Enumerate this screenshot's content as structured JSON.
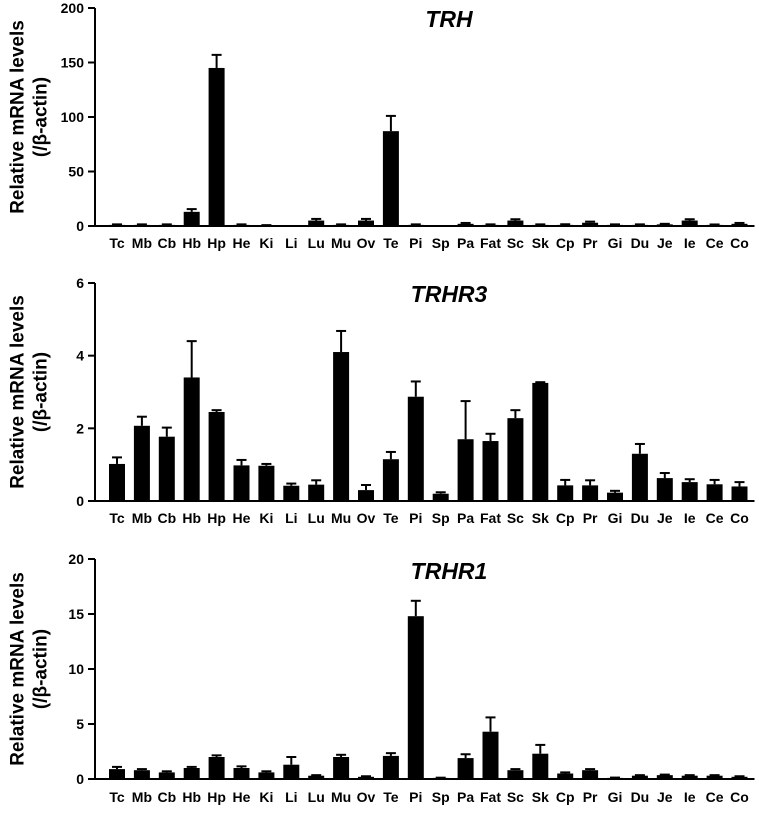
{
  "chart_data": [
    {
      "type": "bar",
      "title": "TRH",
      "ylabel": [
        "Relative mRNA levels",
        "(/β-actin)"
      ],
      "xlabel": "",
      "ylim": [
        0,
        200
      ],
      "yticks": [
        0,
        50,
        100,
        150,
        200
      ],
      "categories": [
        "Tc",
        "Mb",
        "Cb",
        "Hb",
        "Hp",
        "He",
        "Ki",
        "Li",
        "Lu",
        "Mu",
        "Ov",
        "Te",
        "Pi",
        "Sp",
        "Pa",
        "Fat",
        "Sc",
        "Sk",
        "Cp",
        "Pr",
        "Gi",
        "Du",
        "Je",
        "Ie",
        "Ce",
        "Co"
      ],
      "values": [
        1,
        1,
        1,
        13,
        145,
        1,
        0.5,
        0,
        5,
        1,
        5,
        87,
        1,
        0,
        2,
        1,
        5,
        1,
        1,
        3,
        1,
        1,
        1.5,
        5,
        1,
        2
      ],
      "errors": [
        0.5,
        0.5,
        0.5,
        2.5,
        12,
        0.5,
        0.3,
        0,
        1.5,
        0.5,
        1.5,
        14,
        0.5,
        0,
        0.8,
        0.5,
        1.2,
        0.5,
        0.6,
        1,
        0.5,
        0.5,
        0.5,
        1.2,
        0.4,
        0.8
      ],
      "color": "#000000"
    },
    {
      "type": "bar",
      "title": "TRHR3",
      "ylabel": [
        "Relative mRNA levels",
        "(/β-actin)"
      ],
      "xlabel": "",
      "ylim": [
        0,
        6
      ],
      "yticks": [
        0,
        2,
        4,
        6
      ],
      "categories": [
        "Tc",
        "Mb",
        "Cb",
        "Hb",
        "Hp",
        "He",
        "Ki",
        "Li",
        "Lu",
        "Mu",
        "Ov",
        "Te",
        "Pi",
        "Sp",
        "Pa",
        "Fat",
        "Sc",
        "Sk",
        "Cp",
        "Pr",
        "Gi",
        "Du",
        "Je",
        "Ie",
        "Ce",
        "Co"
      ],
      "values": [
        1.02,
        2.07,
        1.77,
        3.4,
        2.45,
        0.98,
        0.97,
        0.42,
        0.45,
        4.1,
        0.3,
        1.15,
        2.87,
        0.2,
        1.7,
        1.65,
        2.28,
        3.25,
        0.43,
        0.43,
        0.23,
        1.3,
        0.63,
        0.52,
        0.46,
        0.4
      ],
      "errors": [
        0.18,
        0.25,
        0.25,
        1.0,
        0.05,
        0.15,
        0.05,
        0.06,
        0.12,
        0.58,
        0.14,
        0.2,
        0.42,
        0.04,
        1.05,
        0.2,
        0.22,
        0.02,
        0.15,
        0.14,
        0.05,
        0.27,
        0.14,
        0.08,
        0.12,
        0.12
      ],
      "color": "#000000"
    },
    {
      "type": "bar",
      "title": "TRHR1",
      "ylabel": [
        "Relative mRNA levels",
        "(/β-actin)"
      ],
      "xlabel": "",
      "ylim": [
        0,
        20
      ],
      "yticks": [
        0,
        5,
        10,
        15,
        20
      ],
      "categories": [
        "Tc",
        "Mb",
        "Cb",
        "Hb",
        "Hp",
        "He",
        "Ki",
        "Li",
        "Lu",
        "Mu",
        "Ov",
        "Te",
        "Pi",
        "Sp",
        "Pa",
        "Fat",
        "Sc",
        "Sk",
        "Cp",
        "Pr",
        "Gi",
        "Du",
        "Je",
        "Ie",
        "Ce",
        "Co"
      ],
      "values": [
        0.9,
        0.8,
        0.6,
        1.0,
        2.0,
        1.0,
        0.6,
        1.3,
        0.3,
        2.0,
        0.2,
        2.1,
        14.8,
        0.1,
        1.9,
        4.3,
        0.8,
        2.3,
        0.5,
        0.8,
        0.1,
        0.3,
        0.35,
        0.3,
        0.3,
        0.2
      ],
      "errors": [
        0.2,
        0.1,
        0.1,
        0.1,
        0.15,
        0.15,
        0.1,
        0.7,
        0.05,
        0.2,
        0.05,
        0.25,
        1.4,
        0.02,
        0.35,
        1.3,
        0.1,
        0.8,
        0.1,
        0.1,
        0.03,
        0.05,
        0.05,
        0.05,
        0.05,
        0.05
      ],
      "color": "#000000"
    }
  ]
}
